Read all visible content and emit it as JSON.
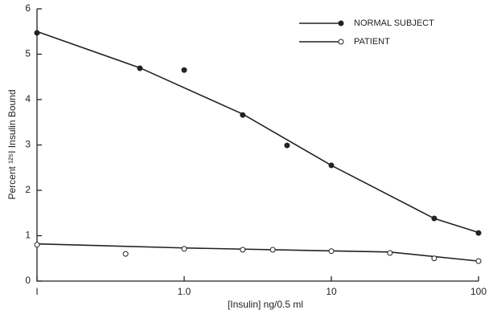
{
  "chart_data": {
    "type": "line",
    "xlabel": "[Insulin] ng/0.5 ml",
    "ylabel": "Percent ¹²⁵I Insulin Bound",
    "xscale": "log",
    "xlim": [
      0.1,
      100
    ],
    "xticks": [
      {
        "value": 0.1,
        "label": "I"
      },
      {
        "value": 1,
        "label": "1.0"
      },
      10,
      100
    ],
    "ylim": [
      0,
      6
    ],
    "yticks": [
      0,
      1,
      2,
      3,
      4,
      5,
      6
    ],
    "legend": "upper right",
    "series": [
      {
        "name": "NORMAL SUBJECT",
        "color": "#222",
        "marker": "filled",
        "x": [
          0.1,
          0.5,
          1,
          2.5,
          5,
          10,
          50,
          100
        ],
        "values": [
          5.47,
          4.69,
          4.65,
          3.66,
          2.99,
          2.55,
          1.38,
          1.06
        ],
        "fit": {
          "x": [
            0.1,
            0.5,
            2.5,
            10,
            50,
            100
          ],
          "values": [
            5.5,
            4.7,
            3.68,
            2.55,
            1.38,
            1.07
          ]
        }
      },
      {
        "name": "PATIENT",
        "color": "#222",
        "marker": "open",
        "x": [
          0.1,
          0.4,
          1,
          2.5,
          4,
          10,
          25,
          50,
          100
        ],
        "values": [
          0.8,
          0.6,
          0.71,
          0.69,
          0.69,
          0.66,
          0.62,
          0.5,
          0.44
        ],
        "fit": {
          "x": [
            0.1,
            1,
            25,
            100
          ],
          "values": [
            0.82,
            0.73,
            0.64,
            0.44
          ]
        }
      }
    ]
  }
}
